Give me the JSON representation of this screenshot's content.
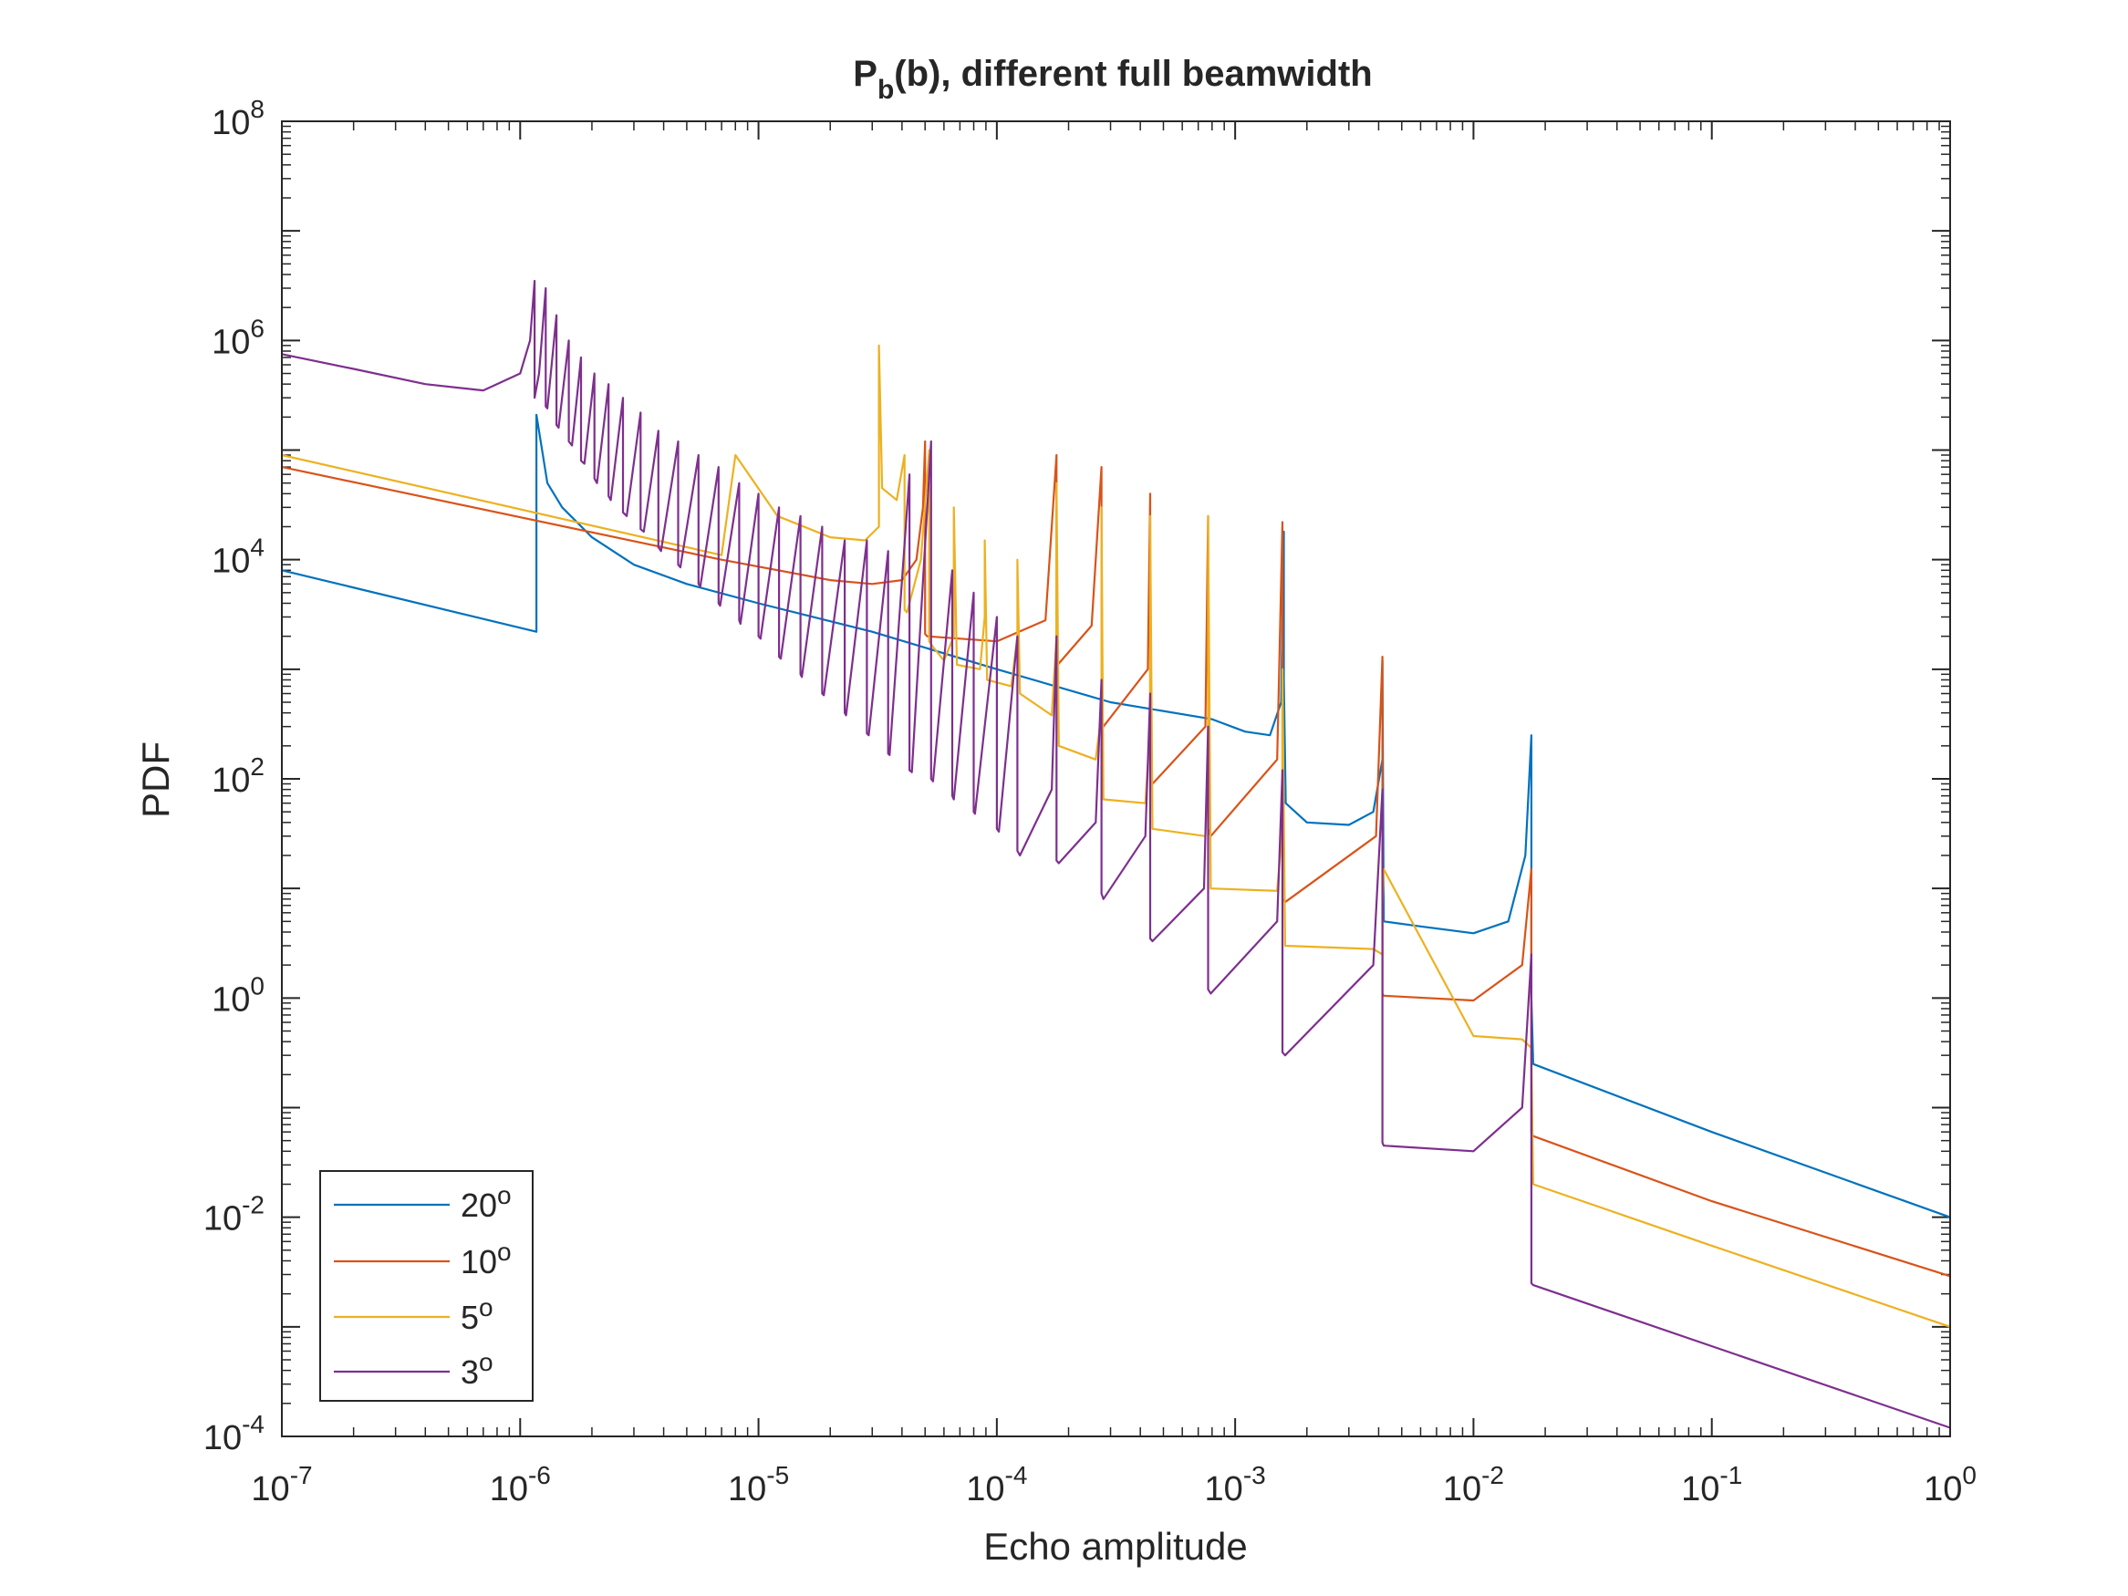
{
  "chart_data": {
    "type": "line",
    "title_main": "P",
    "title_sub": "b",
    "title_rest": "(b), different full beamwidth",
    "xlabel": "Echo amplitude",
    "ylabel": "PDF",
    "xscale": "log",
    "yscale": "log",
    "xlim": [
      1e-07,
      1
    ],
    "ylim": [
      0.0001,
      100000000.0
    ],
    "x_ticks": [
      {
        "base": "10",
        "exp": "-7"
      },
      {
        "base": "10",
        "exp": "-6"
      },
      {
        "base": "10",
        "exp": "-5"
      },
      {
        "base": "10",
        "exp": "-4"
      },
      {
        "base": "10",
        "exp": "-3"
      },
      {
        "base": "10",
        "exp": "-2"
      },
      {
        "base": "10",
        "exp": "-1"
      },
      {
        "base": "10",
        "exp": "0"
      }
    ],
    "y_ticks": [
      {
        "base": "10",
        "exp": "-4"
      },
      {
        "base": "10",
        "exp": "-2"
      },
      {
        "base": "10",
        "exp": "0"
      },
      {
        "base": "10",
        "exp": "2"
      },
      {
        "base": "10",
        "exp": "4"
      },
      {
        "base": "10",
        "exp": "6"
      },
      {
        "base": "10",
        "exp": "8"
      }
    ],
    "legend_position": "bottom-left",
    "grid": false,
    "series": [
      {
        "name": "20",
        "unit": "o",
        "color": "#0072BD",
        "x": [
          1e-07,
          1.17e-06,
          1.17e-06,
          1.3e-06,
          1.5e-06,
          2e-06,
          3e-06,
          5e-06,
          1e-05,
          3e-05,
          0.0001,
          0.0003,
          0.0008,
          0.0011,
          0.0014,
          0.00156,
          0.0016,
          0.0016,
          0.00163,
          0.002,
          0.003,
          0.0038,
          0.00415,
          0.00415,
          0.0042,
          0.006,
          0.01,
          0.014,
          0.0165,
          0.0175,
          0.0175,
          0.0178,
          0.1,
          1
        ],
        "y": [
          8000,
          2200,
          210000.0,
          50000.0,
          30000.0,
          16000.0,
          9000,
          6000,
          4000,
          2200,
          1000,
          500,
          350,
          270,
          250,
          500,
          18000.0,
          800,
          60,
          40,
          38,
          50,
          150,
          1200,
          5,
          4.5,
          3.9,
          5,
          20,
          250,
          1,
          0.25,
          0.06,
          0.01
        ]
      },
      {
        "name": "10",
        "unit": "o",
        "color": "#D95319",
        "x": [
          1e-07,
          7e-06,
          2e-05,
          3e-05,
          4e-05,
          4.6e-05,
          4.9e-05,
          5e-05,
          5e-05,
          5.1e-05,
          0.0001,
          0.00016,
          0.000178,
          0.000178,
          0.00018,
          0.00025,
          0.000275,
          0.000275,
          0.00028,
          0.00043,
          0.00044,
          0.00044,
          0.00045,
          0.00075,
          0.00077,
          0.00077,
          0.00079,
          0.0015,
          0.00158,
          0.00158,
          0.00162,
          0.0039,
          0.00415,
          0.00415,
          0.0042,
          0.01,
          0.016,
          0.0175,
          0.0175,
          0.0178,
          0.1,
          1
        ],
        "y": [
          70000.0,
          10000.0,
          6500,
          6000,
          6500,
          10000.0,
          30000.0,
          120000.0,
          2100,
          2000,
          1800,
          2800,
          90000.0,
          1200,
          1100,
          2500,
          70000.0,
          350,
          300,
          1000,
          40000.0,
          100,
          90,
          300,
          25000.0,
          35,
          30,
          150,
          22000.0,
          8,
          7.5,
          30,
          1300,
          1.1,
          1.05,
          0.95,
          2,
          15,
          0.06,
          0.055,
          0.014,
          0.0029
        ]
      },
      {
        "name": "5",
        "unit": "o",
        "color": "#EDB120",
        "x": [
          1e-07,
          7e-06,
          8e-06,
          1.2e-05,
          2e-05,
          2.8e-05,
          3.2e-05,
          3.2e-05,
          3.3e-05,
          3.8e-05,
          4.1e-05,
          4.1e-05,
          4.2e-05,
          4.8e-05,
          5.2e-05,
          5.2e-05,
          5.4e-05,
          6e-05,
          6.6e-05,
          6.6e-05,
          6.8e-05,
          8.5e-05,
          8.9e-05,
          8.9e-05,
          9.1e-05,
          0.000115,
          0.000122,
          0.000122,
          0.000125,
          0.00017,
          0.000178,
          0.000178,
          0.000182,
          0.00026,
          0.000275,
          0.000275,
          0.00028,
          0.00042,
          0.00044,
          0.00044,
          0.00045,
          0.00075,
          0.00077,
          0.00077,
          0.00079,
          0.0015,
          0.00158,
          0.00158,
          0.00162,
          0.0038,
          0.00415,
          0.00415,
          0.0042,
          0.01,
          0.016,
          0.0175,
          0.0175,
          0.0178,
          0.1,
          1
        ],
        "y": [
          90000.0,
          11000.0,
          90000.0,
          25000.0,
          16000.0,
          15000.0,
          20000.0,
          900000.0,
          45000.0,
          35000.0,
          90000.0,
          3500,
          3300,
          10000.0,
          100000.0,
          1800,
          1600,
          1200,
          2000,
          30000.0,
          1100,
          1000,
          3000,
          15000.0,
          800,
          700,
          2000,
          10000.0,
          600,
          380,
          2000,
          50000.0,
          200,
          150,
          400,
          30000.0,
          65,
          60,
          300,
          25000.0,
          35,
          30,
          150,
          25000.0,
          10,
          9.5,
          35,
          1000,
          3,
          2.8,
          2.5,
          7,
          15,
          0.45,
          0.42,
          0.35,
          0.3,
          0.02,
          0.0055,
          0.001
        ]
      },
      {
        "name": "3",
        "unit": "o",
        "color": "#7E2F8E",
        "x": [
          1e-07,
          2e-07,
          4e-07,
          7e-07,
          1e-06,
          1.1e-06,
          1.15e-06,
          1.15e-06,
          1.2e-06,
          1.28e-06,
          1.28e-06,
          1.3e-06,
          1.42e-06,
          1.42e-06,
          1.45e-06,
          1.6e-06,
          1.6e-06,
          1.65e-06,
          1.8e-06,
          1.8e-06,
          1.86e-06,
          2.05e-06,
          2.05e-06,
          2.1e-06,
          2.35e-06,
          2.35e-06,
          2.4e-06,
          2.7e-06,
          2.7e-06,
          2.8e-06,
          3.2e-06,
          3.2e-06,
          3.3e-06,
          3.8e-06,
          3.8e-06,
          3.9e-06,
          4.6e-06,
          4.6e-06,
          4.7e-06,
          5.6e-06,
          5.6e-06,
          5.7e-06,
          6.8e-06,
          6.8e-06,
          6.9e-06,
          8.3e-06,
          8.3e-06,
          8.4e-06,
          1e-05,
          1e-05,
          1.02e-05,
          1.22e-05,
          1.22e-05,
          1.24e-05,
          1.5e-05,
          1.5e-05,
          1.52e-05,
          1.85e-05,
          1.85e-05,
          1.88e-05,
          2.3e-05,
          2.3e-05,
          2.33e-05,
          2.85e-05,
          2.85e-05,
          2.9e-05,
          3.5e-05,
          3.5e-05,
          3.55e-05,
          4.3e-05,
          4.3e-05,
          4.4e-05,
          5.3e-05,
          5.3e-05,
          5.4e-05,
          6.5e-05,
          6.5e-05,
          6.6e-05,
          8e-05,
          8e-05,
          8.1e-05,
          0.0001,
          0.0001,
          0.000102,
          0.000122,
          0.000122,
          0.000125,
          0.00017,
          0.000178,
          0.000178,
          0.000182,
          0.00026,
          0.000275,
          0.000275,
          0.00028,
          0.00042,
          0.00044,
          0.00044,
          0.00045,
          0.00074,
          0.00077,
          0.00077,
          0.00079,
          0.0015,
          0.00158,
          0.00158,
          0.00162,
          0.0038,
          0.00415,
          0.00415,
          0.0042,
          0.01,
          0.016,
          0.0175,
          0.0175,
          0.0178,
          1
        ],
        "y": [
          750000.0,
          550000.0,
          400000.0,
          350000.0,
          500000.0,
          1000000.0,
          3500000.0,
          300000.0,
          500000.0,
          3000000.0,
          250000.0,
          240000.0,
          1700000.0,
          170000.0,
          160000.0,
          1000000.0,
          120000.0,
          110000.0,
          700000.0,
          80000.0,
          75000.0,
          500000.0,
          55000.0,
          50000.0,
          400000.0,
          38000.0,
          35000.0,
          300000.0,
          27000.0,
          25000.0,
          220000.0,
          19000.0,
          18000.0,
          150000.0,
          13000.0,
          12000.0,
          120000.0,
          9000,
          8500,
          90000.0,
          6000,
          5700,
          70000.0,
          4000,
          3800,
          50000.0,
          2800,
          2600,
          40000.0,
          2000,
          1900,
          30000.0,
          1300,
          1250,
          25000.0,
          900,
          850,
          20000.0,
          600,
          580,
          15000.0,
          400,
          380,
          15000.0,
          260,
          250,
          12000.0,
          170,
          165,
          60000.0,
          120,
          115,
          120000.0,
          100,
          95,
          8000.0,
          70,
          65,
          5000.0,
          50,
          48,
          3000.0,
          35,
          33,
          2000,
          22,
          20,
          80,
          2000,
          18,
          17,
          40,
          800,
          9,
          8,
          30,
          600,
          3.5,
          3.3,
          10,
          300,
          1.2,
          1.1,
          5,
          120,
          0.32,
          0.3,
          2,
          80,
          0.048,
          0.045,
          0.04,
          0.1,
          2.5,
          0.0025,
          0.0024,
          0.00012
        ]
      }
    ]
  }
}
